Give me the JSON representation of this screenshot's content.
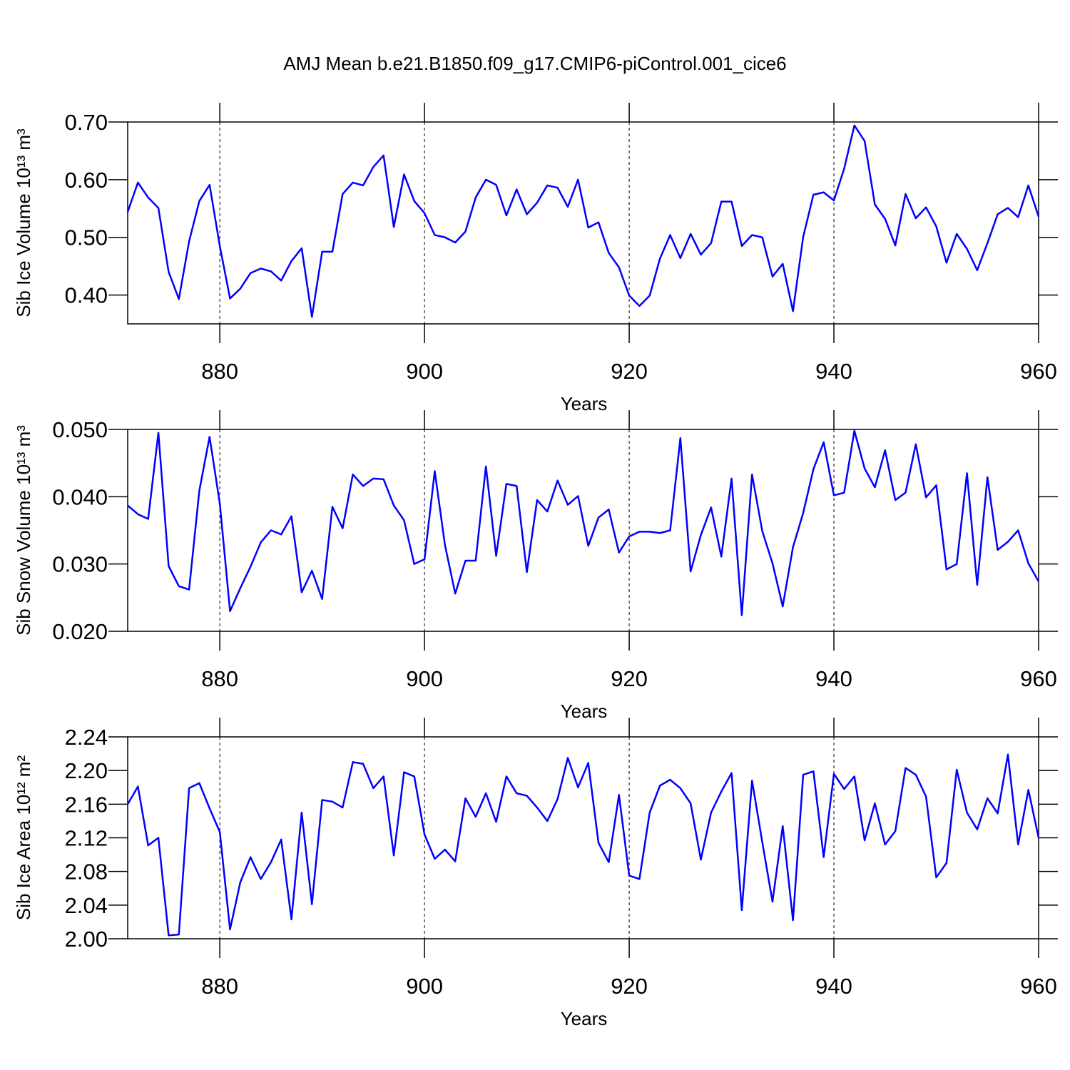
{
  "title": "AMJ Mean b.e21.B1850.f09_g17.CMIP6-piControl.001_cice6",
  "chart_data": [
    {
      "type": "line",
      "ylabel": "Sib Ice Volume 10¹³ m³",
      "xlabel": "Years",
      "xlim": [
        871,
        960
      ],
      "xticks": [
        880,
        900,
        920,
        940,
        960
      ],
      "grid": "x",
      "ylim": [
        0.35,
        0.7
      ],
      "yticks": [
        {
          "value": 0.4,
          "label": "0.40"
        },
        {
          "value": 0.5,
          "label": "0.50"
        },
        {
          "value": 0.6,
          "label": "0.60"
        },
        {
          "value": 0.7,
          "label": "0.70"
        }
      ],
      "x": [
        871,
        872,
        873,
        874,
        875,
        876,
        877,
        878,
        879,
        880,
        881,
        882,
        883,
        884,
        885,
        886,
        887,
        888,
        889,
        890,
        891,
        892,
        893,
        894,
        895,
        896,
        897,
        898,
        899,
        900,
        901,
        902,
        903,
        904,
        905,
        906,
        907,
        908,
        909,
        910,
        911,
        912,
        913,
        914,
        915,
        916,
        917,
        918,
        919,
        920,
        921,
        922,
        923,
        924,
        925,
        926,
        927,
        928,
        929,
        930,
        931,
        932,
        933,
        934,
        935,
        936,
        937,
        938,
        939,
        940,
        941,
        942,
        943,
        944,
        945,
        946,
        947,
        948,
        949,
        950,
        951,
        952,
        953,
        954,
        955,
        956,
        957,
        958,
        959,
        960
      ],
      "series": [
        {
          "color": "#0000ff",
          "values": [
            0.544,
            0.595,
            0.569,
            0.551,
            0.44,
            0.393,
            0.493,
            0.563,
            0.591,
            0.485,
            0.394,
            0.411,
            0.438,
            0.446,
            0.441,
            0.425,
            0.459,
            0.481,
            0.362,
            0.475,
            0.475,
            0.575,
            0.595,
            0.59,
            0.622,
            0.642,
            0.518,
            0.609,
            0.563,
            0.542,
            0.504,
            0.5,
            0.491,
            0.51,
            0.569,
            0.6,
            0.591,
            0.538,
            0.583,
            0.54,
            0.56,
            0.59,
            0.586,
            0.553,
            0.6,
            0.517,
            0.526,
            0.473,
            0.448,
            0.399,
            0.381,
            0.399,
            0.463,
            0.504,
            0.464,
            0.506,
            0.47,
            0.49,
            0.562,
            0.562,
            0.485,
            0.504,
            0.5,
            0.432,
            0.454,
            0.372,
            0.501,
            0.574,
            0.578,
            0.564,
            0.619,
            0.694,
            0.667,
            0.557,
            0.532,
            0.486,
            0.575,
            0.533,
            0.552,
            0.519,
            0.456,
            0.506,
            0.48,
            0.443,
            0.49,
            0.54,
            0.551,
            0.535,
            0.59,
            0.536
          ]
        }
      ]
    },
    {
      "type": "line",
      "ylabel": "Sib Snow Volume 10¹³ m³",
      "xlabel": "Years",
      "xlim": [
        871,
        960
      ],
      "xticks": [
        880,
        900,
        920,
        940,
        960
      ],
      "grid": "x",
      "ylim": [
        0.02,
        0.05
      ],
      "yticks": [
        {
          "value": 0.02,
          "label": "0.020"
        },
        {
          "value": 0.03,
          "label": "0.030"
        },
        {
          "value": 0.04,
          "label": "0.040"
        },
        {
          "value": 0.05,
          "label": "0.050"
        }
      ],
      "x": [
        871,
        872,
        873,
        874,
        875,
        876,
        877,
        878,
        879,
        880,
        881,
        882,
        883,
        884,
        885,
        886,
        887,
        888,
        889,
        890,
        891,
        892,
        893,
        894,
        895,
        896,
        897,
        898,
        899,
        900,
        901,
        902,
        903,
        904,
        905,
        906,
        907,
        908,
        909,
        910,
        911,
        912,
        913,
        914,
        915,
        916,
        917,
        918,
        919,
        920,
        921,
        922,
        923,
        924,
        925,
        926,
        927,
        928,
        929,
        930,
        931,
        932,
        933,
        934,
        935,
        936,
        937,
        938,
        939,
        940,
        941,
        942,
        943,
        944,
        945,
        946,
        947,
        948,
        949,
        950,
        951,
        952,
        953,
        954,
        955,
        956,
        957,
        958,
        959,
        960
      ],
      "series": [
        {
          "color": "#0000ff",
          "values": [
            0.0387,
            0.0374,
            0.0367,
            0.0495,
            0.0297,
            0.0267,
            0.0262,
            0.0409,
            0.0489,
            0.039,
            0.023,
            0.0264,
            0.0296,
            0.0332,
            0.035,
            0.0344,
            0.0371,
            0.0258,
            0.029,
            0.0248,
            0.0385,
            0.0353,
            0.0433,
            0.0416,
            0.0427,
            0.0426,
            0.0387,
            0.0365,
            0.03,
            0.0307,
            0.0438,
            0.0328,
            0.0256,
            0.0305,
            0.0305,
            0.0445,
            0.0312,
            0.0419,
            0.0416,
            0.0288,
            0.0395,
            0.0378,
            0.0424,
            0.0388,
            0.0401,
            0.0327,
            0.0369,
            0.0381,
            0.0317,
            0.0341,
            0.0348,
            0.0348,
            0.0346,
            0.035,
            0.0487,
            0.0289,
            0.0343,
            0.0384,
            0.0311,
            0.0427,
            0.0224,
            0.0433,
            0.0349,
            0.0301,
            0.0237,
            0.0325,
            0.0376,
            0.0441,
            0.0481,
            0.0402,
            0.0406,
            0.0498,
            0.0442,
            0.0414,
            0.0469,
            0.0395,
            0.0406,
            0.0478,
            0.0399,
            0.0417,
            0.0292,
            0.03,
            0.0435,
            0.0269,
            0.0429,
            0.0321,
            0.0333,
            0.035,
            0.0301,
            0.0274
          ]
        }
      ]
    },
    {
      "type": "line",
      "ylabel": "Sib Ice Area 10¹² m²",
      "xlabel": "Years",
      "xlim": [
        871,
        960
      ],
      "xticks": [
        880,
        900,
        920,
        940,
        960
      ],
      "grid": "x",
      "ylim": [
        2.0,
        2.24
      ],
      "yticks": [
        {
          "value": 2,
          "label": "2.00"
        },
        2.04,
        2.08,
        2.12,
        2.16,
        {
          "value": 2.2,
          "label": "2.20"
        },
        2.24
      ],
      "x": [
        871,
        872,
        873,
        874,
        875,
        876,
        877,
        878,
        879,
        880,
        881,
        882,
        883,
        884,
        885,
        886,
        887,
        888,
        889,
        890,
        891,
        892,
        893,
        894,
        895,
        896,
        897,
        898,
        899,
        900,
        901,
        902,
        903,
        904,
        905,
        906,
        907,
        908,
        909,
        910,
        911,
        912,
        913,
        914,
        915,
        916,
        917,
        918,
        919,
        920,
        921,
        922,
        923,
        924,
        925,
        926,
        927,
        928,
        929,
        930,
        931,
        932,
        933,
        934,
        935,
        936,
        937,
        938,
        939,
        940,
        941,
        942,
        943,
        944,
        945,
        946,
        947,
        948,
        949,
        950,
        951,
        952,
        953,
        954,
        955,
        956,
        957,
        958,
        959,
        960
      ],
      "series": [
        {
          "color": "#0000ff",
          "values": [
            2.16,
            2.181,
            2.111,
            2.12,
            2.004,
            2.005,
            2.179,
            2.185,
            2.155,
            2.127,
            2.011,
            2.067,
            2.097,
            2.071,
            2.091,
            2.118,
            2.023,
            2.15,
            2.041,
            2.165,
            2.163,
            2.156,
            2.21,
            2.208,
            2.179,
            2.193,
            2.099,
            2.198,
            2.193,
            2.124,
            2.095,
            2.106,
            2.092,
            2.167,
            2.145,
            2.173,
            2.139,
            2.193,
            2.173,
            2.17,
            2.156,
            2.14,
            2.166,
            2.215,
            2.18,
            2.209,
            2.114,
            2.091,
            2.171,
            2.075,
            2.071,
            2.15,
            2.182,
            2.189,
            2.179,
            2.161,
            2.094,
            2.15,
            2.175,
            2.197,
            2.034,
            2.188,
            2.115,
            2.044,
            2.134,
            2.022,
            2.195,
            2.199,
            2.097,
            2.196,
            2.178,
            2.193,
            2.117,
            2.161,
            2.112,
            2.128,
            2.203,
            2.195,
            2.169,
            2.073,
            2.09,
            2.201,
            2.15,
            2.13,
            2.167,
            2.149,
            2.219,
            2.112,
            2.177,
            2.12
          ]
        }
      ]
    }
  ]
}
